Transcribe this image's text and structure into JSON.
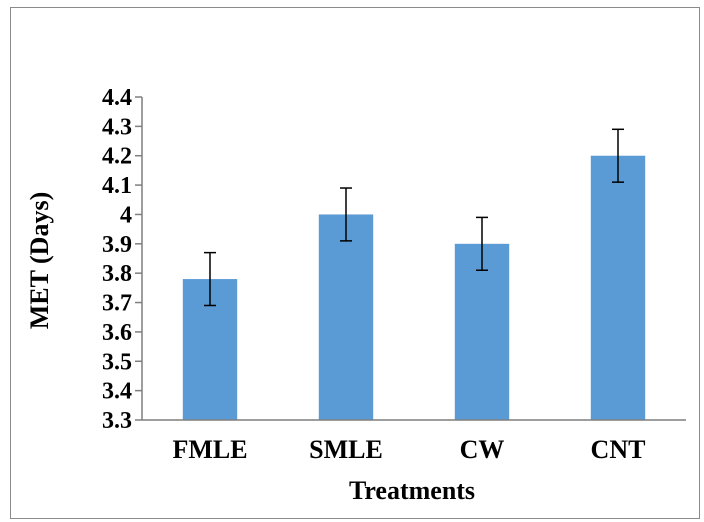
{
  "chart_data": {
    "type": "bar",
    "categories": [
      "FMLE",
      "SMLE",
      "CW",
      "CNT"
    ],
    "values": [
      3.78,
      4.0,
      3.9,
      4.2
    ],
    "error": [
      0.09,
      0.09,
      0.09,
      0.09
    ],
    "title": "",
    "xlabel": "Treatments",
    "ylabel": "MET (Days)",
    "ylim": [
      3.3,
      4.4
    ],
    "yticks": [
      "3.3",
      "3.4",
      "3.5",
      "3.6",
      "3.7",
      "3.8",
      "3.9",
      "4",
      "4.1",
      "4.2",
      "4.3",
      "4.4"
    ],
    "grid": false,
    "legend": "none",
    "bar_color": "#5b9bd5"
  }
}
